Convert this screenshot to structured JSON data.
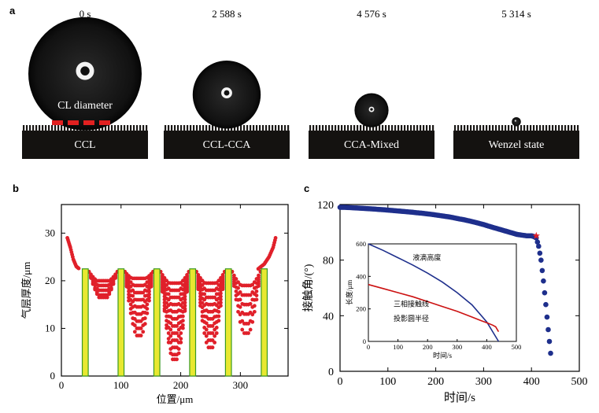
{
  "panel_a": {
    "label": "a",
    "items": [
      {
        "time": "0 s",
        "substrate": "CCL",
        "annotation": "CL diameter",
        "drop_scale": 1.0
      },
      {
        "time": "2 588 s",
        "substrate": "CCL-CCA",
        "drop_scale": 0.6
      },
      {
        "time": "4 576 s",
        "substrate": "CCA-Mixed",
        "drop_scale": 0.3
      },
      {
        "time": "5 314 s",
        "substrate": "Wenzel state",
        "drop_scale": 0.08
      }
    ]
  },
  "chart_data": [
    {
      "panel": "b",
      "type": "scatter",
      "xlabel": "位置/μm",
      "ylabel": "气层厚度/μm",
      "xlim": [
        0,
        380
      ],
      "ylim": [
        0,
        36
      ],
      "xticks": [
        0,
        100,
        200,
        300
      ],
      "yticks": [
        0,
        10,
        20,
        30
      ],
      "pillars_x": [
        40,
        100,
        160,
        220,
        280,
        340
      ],
      "pillar_height": 22.5,
      "colors": {
        "points": "#e0202a",
        "pillars": "#e8e830",
        "pillar_border": "#3a9a20"
      },
      "edges": {
        "left": [
          [
            10,
            29
          ],
          [
            15,
            27
          ],
          [
            20,
            24.5
          ],
          [
            25,
            23
          ],
          [
            30,
            22.5
          ]
        ],
        "right": [
          [
            330,
            22.5
          ],
          [
            340,
            23.5
          ],
          [
            348,
            25
          ],
          [
            355,
            27
          ],
          [
            360,
            29.5
          ]
        ]
      },
      "sag_profiles": {
        "gap_1": {
          "x": [
            46,
            94
          ],
          "curves_bottom": [
            20,
            19,
            18,
            17,
            16.5
          ]
        },
        "gap_2": {
          "x": [
            106,
            154
          ],
          "curves_bottom": [
            20.5,
            19,
            17.5,
            16,
            14.5,
            13,
            11.5,
            10,
            8.5
          ]
        },
        "gap_3": {
          "x": [
            166,
            214
          ],
          "curves_bottom": [
            19.5,
            18,
            16.5,
            15,
            13.5,
            12,
            10.5,
            9,
            7.5,
            6,
            4.5,
            3.5
          ]
        },
        "gap_4": {
          "x": [
            226,
            274
          ],
          "curves_bottom": [
            19.5,
            18,
            16.5,
            15,
            13.5,
            12,
            10.5,
            9,
            7.5,
            6
          ]
        },
        "gap_5": {
          "x": [
            286,
            334
          ],
          "curves_bottom": [
            19,
            17,
            15,
            13,
            11,
            9
          ]
        }
      }
    },
    {
      "panel": "c",
      "type": "scatter",
      "xlabel": "时间/s",
      "ylabel": "接触角/(°)",
      "xlim": [
        0,
        500
      ],
      "ylim": [
        0,
        120
      ],
      "xticks": [
        0,
        100,
        200,
        300,
        400,
        500
      ],
      "yticks": [
        0,
        40,
        80,
        120
      ],
      "colors": {
        "points": "#1e2f8c",
        "marker": "#e0202a"
      },
      "series": [
        {
          "x": [
            0,
            10,
            20,
            30,
            40,
            50,
            60,
            70,
            80,
            90,
            100,
            110,
            120,
            130,
            140,
            150,
            160,
            170,
            180,
            190,
            200,
            210,
            220,
            230,
            240,
            250,
            260,
            270,
            280,
            290,
            300,
            310,
            320,
            330,
            340,
            350,
            360,
            370,
            380,
            390,
            400,
            405,
            410,
            415,
            420,
            425,
            430,
            435,
            440
          ],
          "y": [
            118,
            118,
            117.8,
            117.6,
            117.4,
            117.2,
            117,
            116.8,
            116.5,
            116.3,
            116,
            115.7,
            115.4,
            115.1,
            114.8,
            114.5,
            114.1,
            113.8,
            113.4,
            113,
            112.5,
            112,
            111.5,
            111,
            110.3,
            109.6,
            109,
            108.2,
            107.4,
            106.5,
            105.6,
            104.5,
            103.5,
            102.5,
            101.5,
            100.5,
            99.5,
            98.5,
            98,
            97.5,
            97.5,
            97,
            96,
            90,
            80,
            65,
            48,
            30,
            13
          ]
        }
      ],
      "highlight_point": {
        "x": 410,
        "y": 97.5
      },
      "inset": {
        "xlabel": "时间/s",
        "ylabel": "长度/μm",
        "xlim": [
          0,
          500
        ],
        "ylim": [
          0,
          600
        ],
        "xticks": [
          0,
          100,
          200,
          300,
          400,
          500
        ],
        "yticks": [
          0,
          200,
          400,
          600
        ],
        "series": [
          {
            "name": "液滴高度",
            "color": "#1e2f8c",
            "x": [
              0,
              50,
              100,
              150,
              200,
              250,
              300,
              350,
              400,
              440
            ],
            "y": [
              600,
              560,
              515,
              470,
              420,
              365,
              300,
              225,
              120,
              0
            ]
          },
          {
            "name": "三相接触线",
            "name2": "投影圆半径",
            "color": "#cc1111",
            "x": [
              0,
              50,
              100,
              150,
              200,
              250,
              300,
              350,
              380,
              400,
              420,
              430,
              440
            ],
            "y": [
              350,
              325,
              300,
              275,
              245,
              215,
              185,
              150,
              128,
              115,
              100,
              90,
              60
            ]
          }
        ]
      }
    }
  ]
}
